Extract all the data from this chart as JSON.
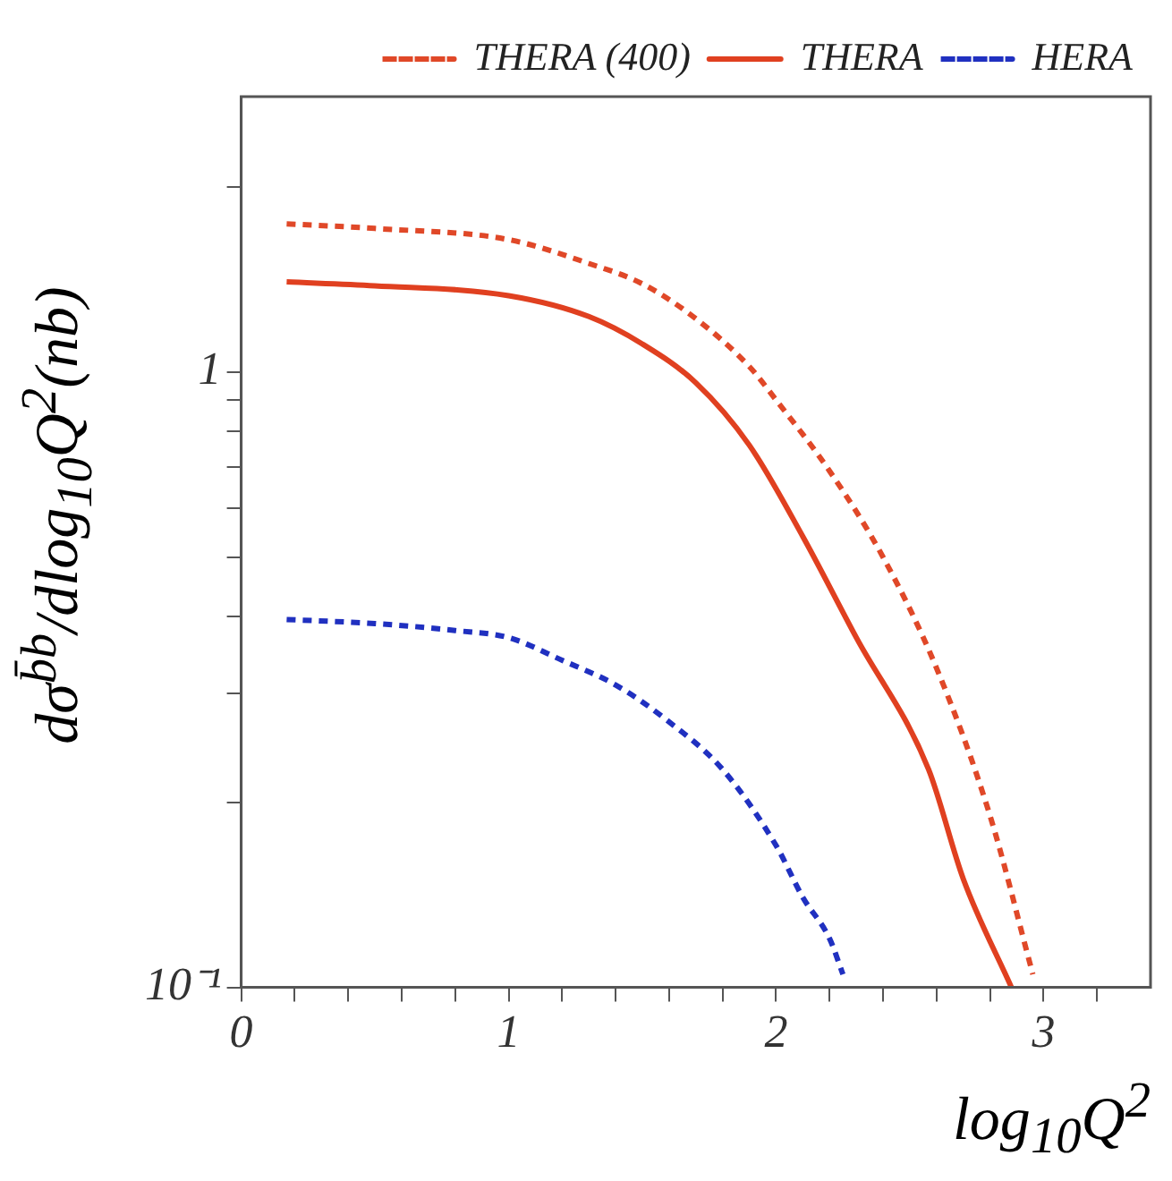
{
  "chart_data": {
    "type": "line",
    "xlabel": "log$_{10}$Q$^{2}$",
    "ylabel": "dσ$^{b̄b}$/dlog$_{10}$Q$^{2}$(nb)",
    "log": "y",
    "xlim": [
      0,
      3.4
    ],
    "ylim": [
      0.1,
      2.8
    ],
    "xticks": [
      0,
      {
        "value": 0.2,
        "label": null
      },
      {
        "value": 0.4,
        "label": null
      },
      {
        "value": 0.6,
        "label": null
      },
      {
        "value": 0.8,
        "label": null
      },
      1,
      {
        "value": 1.2,
        "label": null
      },
      {
        "value": 1.4,
        "label": null
      },
      {
        "value": 1.6,
        "label": null
      },
      {
        "value": 1.8,
        "label": null
      },
      2,
      {
        "value": 2.2,
        "label": null
      },
      {
        "value": 2.4,
        "label": null
      },
      {
        "value": 2.6,
        "label": null
      },
      {
        "value": 2.8,
        "label": null
      },
      3,
      {
        "value": 3.2,
        "label": null
      }
    ],
    "yticks": [
      {
        "value": 0.1,
        "label": "10⁻¹"
      },
      {
        "value": 0.2,
        "label": null
      },
      {
        "value": 0.3,
        "label": null
      },
      {
        "value": 0.4,
        "label": null
      },
      {
        "value": 0.5,
        "label": null
      },
      {
        "value": 0.6,
        "label": null
      },
      {
        "value": 0.7,
        "label": null
      },
      {
        "value": 0.8,
        "label": null
      },
      {
        "value": 0.9,
        "label": null
      },
      1,
      {
        "value": 2,
        "label": null
      }
    ],
    "grid": false,
    "legend": "top right",
    "marker": "none",
    "series": [
      {
        "name": "THERA (400)",
        "color": "#e04828",
        "line_style": "dashed",
        "x": [
          0.17,
          0.5,
          1,
          1.3,
          1.5,
          1.7,
          1.9,
          2,
          2.2,
          2.4,
          2.6,
          2.8,
          2.96
        ],
        "values": [
          1.74,
          1.71,
          1.64,
          1.5,
          1.39,
          1.22,
          1.02,
          0.9,
          0.69,
          0.5,
          0.33,
          0.19,
          0.105
        ]
      },
      {
        "name": "THERA",
        "color": "#e04020",
        "line_style": "solid",
        "x": [
          0.17,
          0.5,
          1,
          1.3,
          1.5,
          1.7,
          1.9,
          2.1,
          2.3,
          2.57,
          2.7,
          2.88
        ],
        "values": [
          1.4,
          1.38,
          1.33,
          1.23,
          1.11,
          0.96,
          0.76,
          0.54,
          0.37,
          0.226,
          0.15,
          0.1
        ]
      },
      {
        "name": "HERA",
        "color": "#2030c0",
        "line_style": "dashed",
        "x": [
          0.17,
          0.5,
          0.8,
          1,
          1.2,
          1.4,
          1.6,
          1.8,
          2,
          2.1,
          2.2,
          2.25
        ],
        "values": [
          0.396,
          0.39,
          0.38,
          0.37,
          0.34,
          0.31,
          0.27,
          0.226,
          0.17,
          0.14,
          0.12,
          0.105
        ]
      }
    ]
  }
}
